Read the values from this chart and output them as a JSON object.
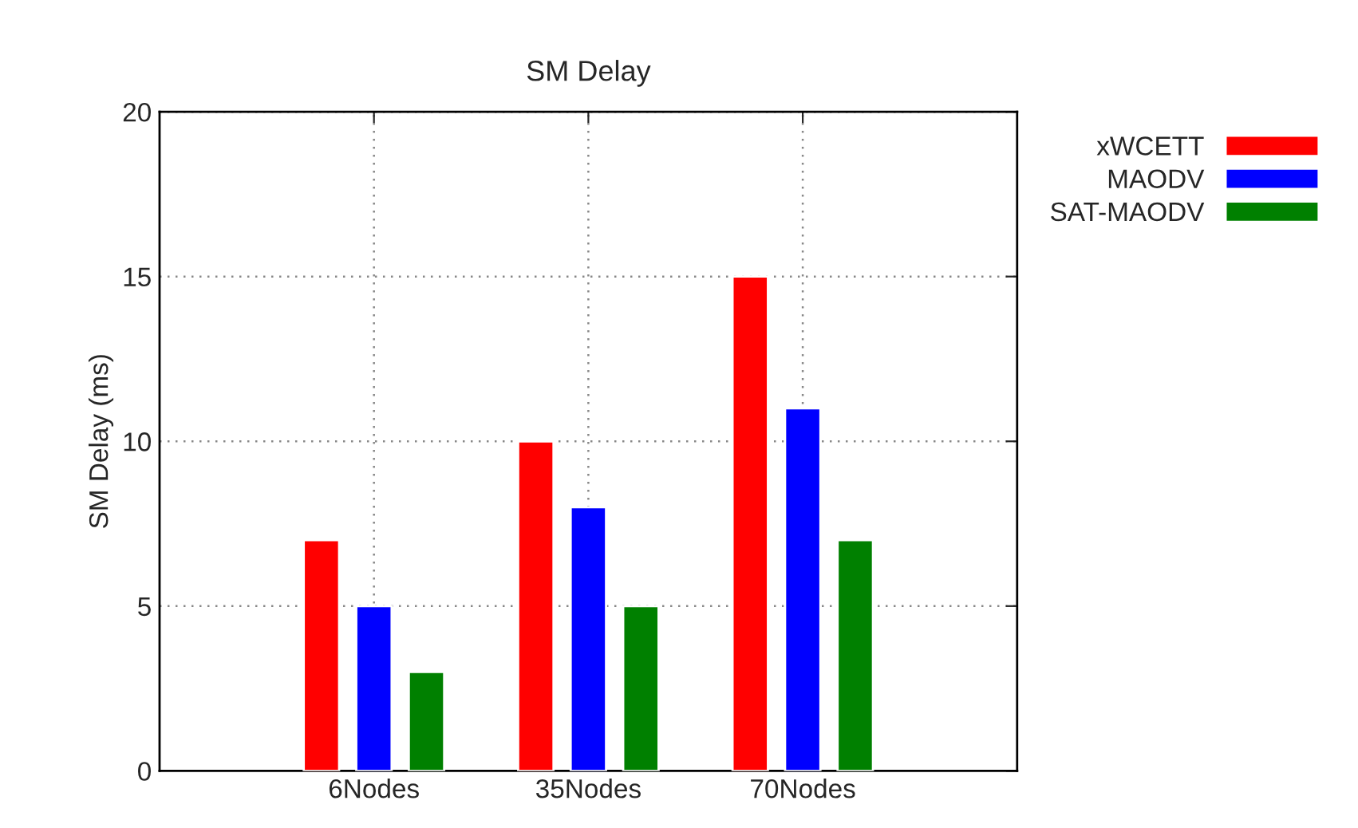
{
  "chart_data": {
    "type": "bar",
    "title": "SM Delay",
    "ylabel": "SM Delay (ms)",
    "categories": [
      "6Nodes",
      "35Nodes",
      "70Nodes"
    ],
    "series": [
      {
        "name": "xWCETT",
        "color": "#ff0000",
        "values": [
          7,
          10,
          15
        ]
      },
      {
        "name": "MAODV",
        "color": "#0000ff",
        "values": [
          5,
          8,
          11
        ]
      },
      {
        "name": "SAT-MAODV",
        "color": "#008000",
        "values": [
          3,
          5,
          7
        ]
      }
    ],
    "ylim": [
      0,
      20
    ],
    "yticks": [
      0,
      5,
      10,
      15,
      20
    ],
    "grid": true,
    "legend": "top right"
  }
}
